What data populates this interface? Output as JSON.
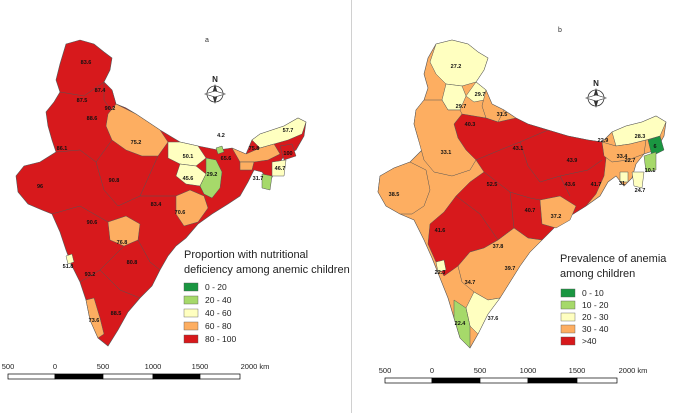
{
  "colors": {
    "class_0_20": "#1a9641",
    "class_20_40": "#a6d96a",
    "class_40_60": "#ffffc0",
    "class_60_80": "#fdae61",
    "class_80_100": "#d7191c",
    "boundary": "#555555"
  },
  "panel_a": {
    "tag": "a",
    "legend_title_line1": "Proportion with nutritional",
    "legend_title_line2": "deficiency among anemic children",
    "legend": [
      "0 - 20",
      "20 - 40",
      "40 - 60",
      "60 - 80",
      "80 - 100"
    ],
    "north": "N",
    "scale": {
      "ticks": [
        "500",
        "0",
        "500",
        "1000",
        "1500",
        "2000 km"
      ]
    },
    "values": [
      "83.6",
      "87.4",
      "87.5",
      "90.2",
      "88.6",
      "86.1",
      "75.2",
      "50.1",
      "65.6",
      "75.8",
      "57.7",
      "100",
      "46.7",
      "31.7",
      "29.2",
      "45.6",
      "96",
      "90.8",
      "83.4",
      "70.6",
      "90.6",
      "76.8",
      "80.8",
      "51.8",
      "93.2",
      "73.6",
      "88.5",
      "4.2"
    ]
  },
  "panel_b": {
    "tag": "b",
    "legend_title_line1": "Prevalence of anemia",
    "legend_title_line2": "among children",
    "legend": [
      "0 - 10",
      "10 - 20",
      "20 - 30",
      "30 - 40",
      ">40"
    ],
    "north": "N",
    "scale": {
      "ticks": [
        "500",
        "0",
        "500",
        "1000",
        "1500",
        "2000 km"
      ]
    },
    "values": [
      "27.2",
      "29.7",
      "29.7",
      "31.5",
      "40.3",
      "43.1",
      "43.9",
      "22.9",
      "28.3",
      "33.4",
      "6",
      "33.1",
      "52.5",
      "43.6",
      "41.7",
      "22.7",
      "10.1",
      "31",
      "24.7",
      "38.5",
      "41.6",
      "40.7",
      "37.2",
      "37.8",
      "39.7",
      "22.3",
      "34.7",
      "22.4",
      "37.6"
    ]
  }
}
